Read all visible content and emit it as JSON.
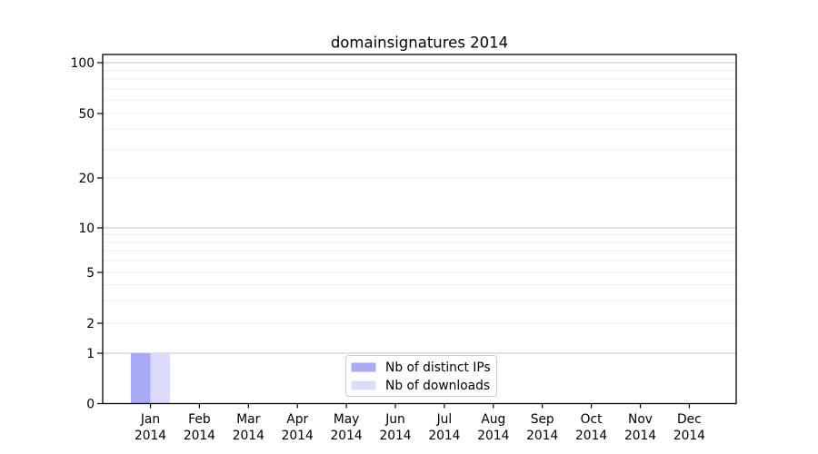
{
  "figure": {
    "title": "domainsignatures 2014"
  },
  "chart_data": {
    "type": "bar",
    "title": "domainsignatures 2014",
    "categories": [
      "Jan 2014",
      "Feb 2014",
      "Mar 2014",
      "Apr 2014",
      "May 2014",
      "Jun 2014",
      "Jul 2014",
      "Aug 2014",
      "Sep 2014",
      "Oct 2014",
      "Nov 2014",
      "Dec 2014"
    ],
    "series": [
      {
        "name": "Nb of distinct IPs",
        "color": "#a9aaf5",
        "values": [
          1,
          0,
          0,
          0,
          0,
          0,
          0,
          0,
          0,
          0,
          0,
          0
        ]
      },
      {
        "name": "Nb of downloads",
        "color": "#dbdcf9",
        "values": [
          1,
          0,
          0,
          0,
          0,
          0,
          0,
          0,
          0,
          0,
          0,
          0
        ]
      }
    ],
    "xlabel": "",
    "ylabel": "",
    "y_ticks": [
      0,
      1,
      2,
      5,
      10,
      20,
      50,
      100
    ],
    "y_tick_labels": [
      "0",
      "1",
      "2",
      "5",
      "10",
      "20",
      "50",
      "100"
    ],
    "y_scale": "log above 1 with linear segment 0 to 1 (symlog-like)",
    "ylim": [
      0,
      112
    ],
    "y_minor_gridlines": [
      2,
      3,
      4,
      5,
      6,
      7,
      8,
      9,
      20,
      30,
      40,
      50,
      60,
      70,
      80,
      90
    ],
    "y_major_gridlines": [
      1,
      10,
      100
    ],
    "grid": "horizontal only, log minor lines",
    "legend_position": "inside axes, lower center"
  },
  "legend": {
    "entries": [
      {
        "label": "Nb of distinct IPs",
        "swatch_color": "#a9aaf5"
      },
      {
        "label": "Nb of downloads",
        "swatch_color": "#dbdcf9"
      }
    ]
  },
  "colors": {
    "series1": "#a9aaf5",
    "series2": "#dbdcf9",
    "grid_major": "#c2c2c2",
    "grid_minor": "#ededed",
    "spine": "#000000",
    "legend_border": "#cccccc",
    "background": "#ffffff",
    "text": "#000000"
  }
}
